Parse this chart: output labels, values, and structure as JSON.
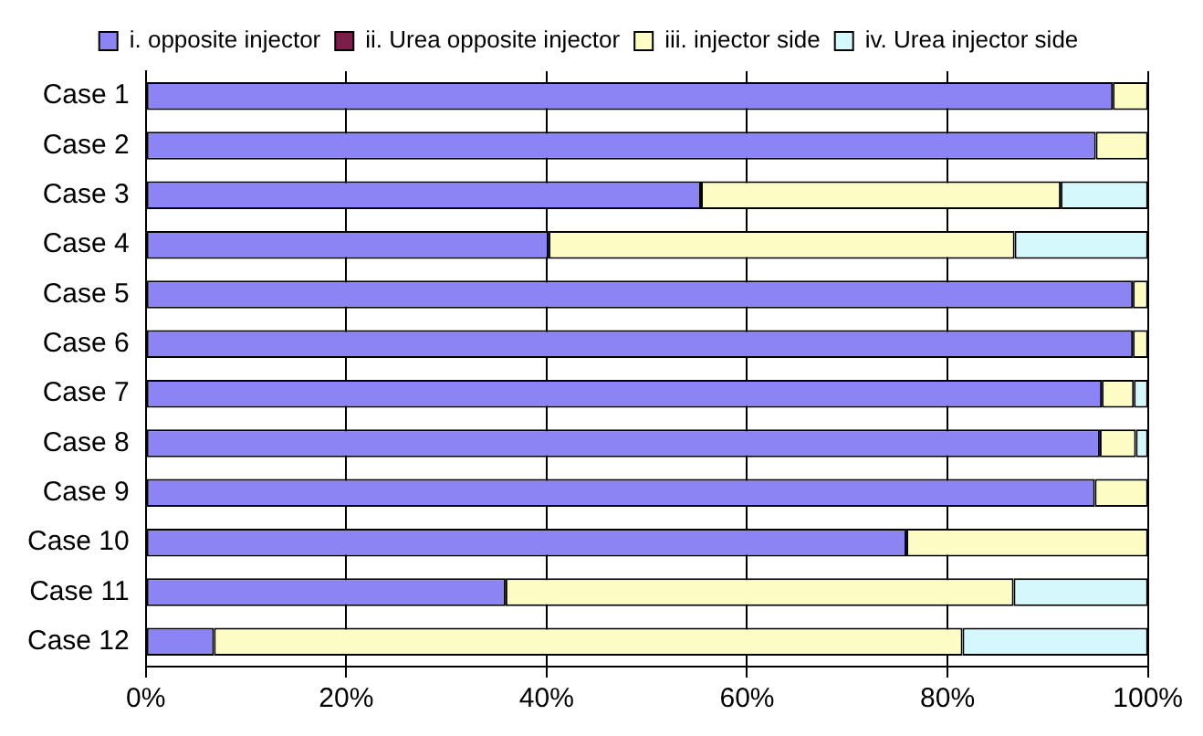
{
  "chart_data": {
    "type": "bar",
    "orientation": "horizontal",
    "stacked": true,
    "categories": [
      "Case 1",
      "Case 2",
      "Case 3",
      "Case 4",
      "Case 5",
      "Case 6",
      "Case 7",
      "Case 8",
      "Case 9",
      "Case 10",
      "Case 11",
      "Case 12"
    ],
    "series": [
      {
        "name": "i. opposite injector",
        "color": "#8c84f4",
        "values": [
          96.5,
          94.8,
          55.4,
          40.2,
          98.5,
          98.5,
          95.4,
          95.2,
          94.7,
          75.9,
          35.9,
          6.8
        ]
      },
      {
        "name": "ii. Urea opposite injector",
        "color": "#7a1f4a",
        "values": [
          0,
          0,
          0,
          0,
          0,
          0,
          0,
          0,
          0,
          0,
          0,
          0
        ]
      },
      {
        "name": "iii. injector side",
        "color": "#fcfcc4",
        "values": [
          3.5,
          5.2,
          35.9,
          46.5,
          1.5,
          1.5,
          3.2,
          3.6,
          5.3,
          24.1,
          50.7,
          74.7
        ]
      },
      {
        "name": "iv. Urea injector side",
        "color": "#d4f8fc",
        "values": [
          0,
          0,
          8.7,
          13.3,
          0,
          0,
          1.4,
          1.2,
          0,
          0,
          13.4,
          18.5
        ]
      }
    ],
    "xlim": [
      0,
      100
    ],
    "xticks": [
      {
        "value": 0,
        "label": "0%"
      },
      {
        "value": 20,
        "label": "20%"
      },
      {
        "value": 40,
        "label": "40%"
      },
      {
        "value": 60,
        "label": "60%"
      },
      {
        "value": 80,
        "label": "80%"
      },
      {
        "value": 100,
        "label": "100%"
      }
    ],
    "grid": "x",
    "legend": "top"
  }
}
